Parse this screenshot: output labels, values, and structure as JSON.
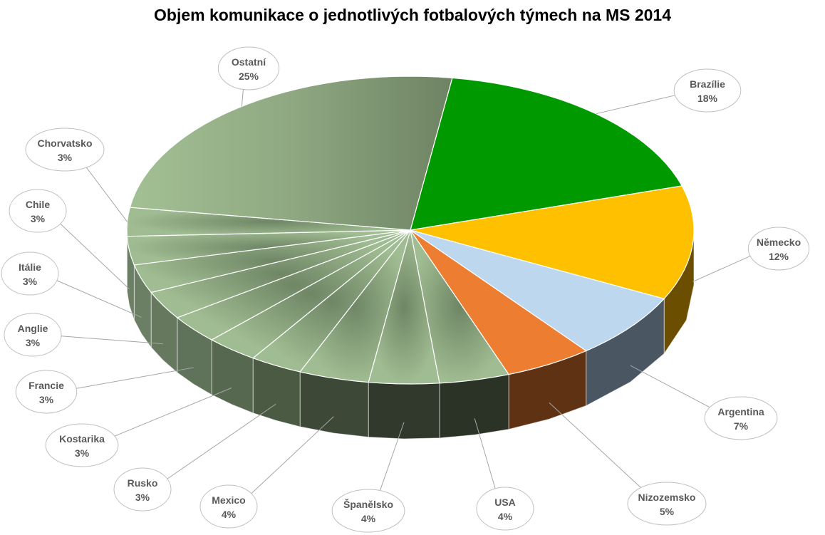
{
  "chart_data": {
    "type": "pie",
    "title": "Objem komunikace o jednotlivých fotbalových týmech na MS 2014",
    "slices": [
      {
        "label": "Brazílie",
        "pct_label": "18%",
        "value": 18,
        "color": "#009900",
        "side": "#005400"
      },
      {
        "label": "Německo",
        "pct_label": "12%",
        "value": 12,
        "color": "#FFC000",
        "side": "#6B4E00"
      },
      {
        "label": "Argentina",
        "pct_label": "7%",
        "value": 7,
        "color": "#BDD7EE",
        "side": "#4A5661"
      },
      {
        "label": "Nizozemsko",
        "pct_label": "5%",
        "value": 5,
        "color": "#ED7D31",
        "side": "#603214"
      },
      {
        "label": "USA",
        "pct_label": "4%",
        "value": 4,
        "color": "#8FAA80",
        "side": "#2A3326"
      },
      {
        "label": "Španělsko",
        "pct_label": "4%",
        "value": 4,
        "color": "#8FAA80",
        "side": "#30392B"
      },
      {
        "label": "Mexico",
        "pct_label": "4%",
        "value": 4,
        "color": "#8FAA80",
        "side": "#3D4936"
      },
      {
        "label": "Rusko",
        "pct_label": "3%",
        "value": 3,
        "color": "#8FAA80",
        "side": "#4A5A43"
      },
      {
        "label": "Kostarika",
        "pct_label": "3%",
        "value": 3,
        "color": "#8FAA80",
        "side": "#566850"
      },
      {
        "label": "Francie",
        "pct_label": "3%",
        "value": 3,
        "color": "#8FAA80",
        "side": "#5F725A"
      },
      {
        "label": "Anglie",
        "pct_label": "3%",
        "value": 3,
        "color": "#8FAA80",
        "side": "#66795F"
      },
      {
        "label": "Itálie",
        "pct_label": "3%",
        "value": 3,
        "color": "#8FAA80",
        "side": "#6B7F64"
      },
      {
        "label": "Chile",
        "pct_label": "3%",
        "value": 3,
        "color": "#8FAA80",
        "side": "#6B7F64"
      },
      {
        "label": "Chorvatsko",
        "pct_label": "3%",
        "value": 3,
        "color": "#8FAA80",
        "side": "#6B7F64"
      },
      {
        "label": "Ostatní",
        "pct_label": "25%",
        "value": 25,
        "color": "#8FAA80",
        "side": "#6B7F64"
      }
    ],
    "legend": "none"
  }
}
